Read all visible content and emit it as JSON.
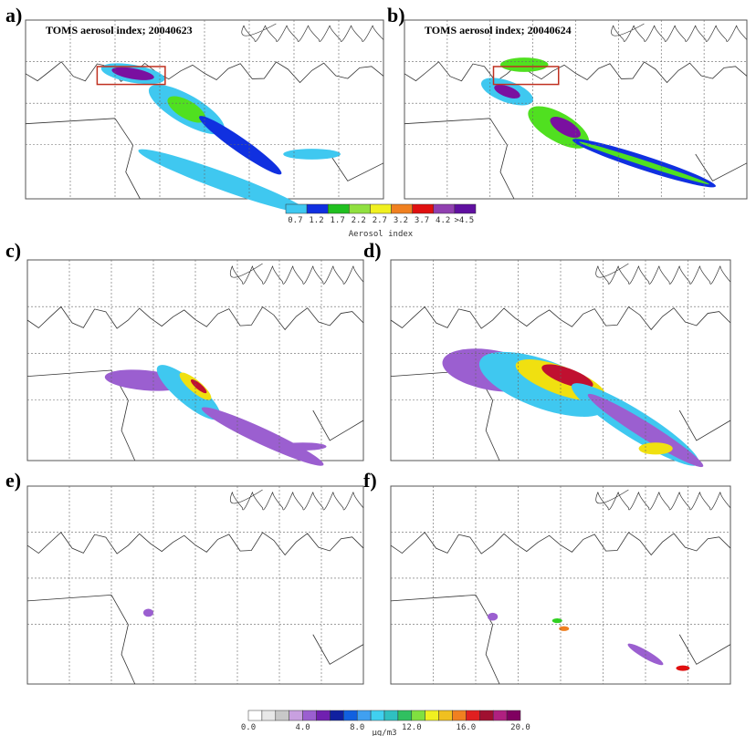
{
  "panels": [
    {
      "label": "a)",
      "title": "TOMS aerosol index; 20040623"
    },
    {
      "label": "b)",
      "title": "TOMS aerosol index; 20040624"
    },
    {
      "label": "c)"
    },
    {
      "label": "d)"
    },
    {
      "label": "e)"
    },
    {
      "label": "f)"
    }
  ],
  "colorbars": [
    {
      "labels": [
        "0.7",
        "1.2",
        "1.7",
        "2.2",
        "2.7",
        "3.2",
        "3.7",
        "4.2",
        ">4.5"
      ],
      "title": "Aerosol index"
    },
    {
      "labels": [
        "0.0",
        "4.0",
        "8.0",
        "12.0",
        "16.0",
        "20.0"
      ],
      "title": "µg/m3"
    }
  ]
}
